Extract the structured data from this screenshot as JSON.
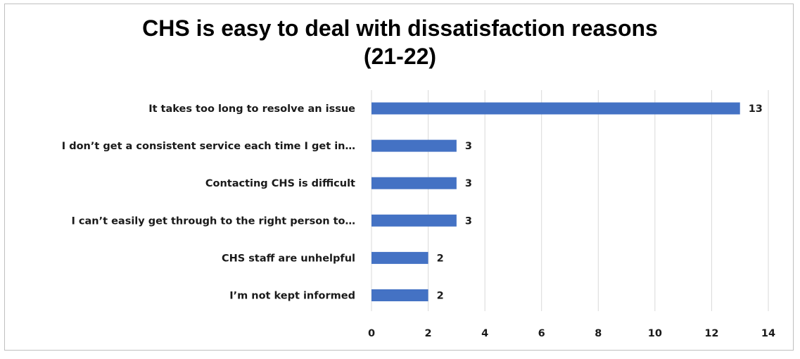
{
  "chart_data": {
    "type": "bar",
    "orientation": "horizontal",
    "title_lines": [
      "CHS is easy to deal with dissatisfaction reasons",
      "(21-22)"
    ],
    "categories": [
      "It takes too long to resolve an issue",
      "I don’t get a consistent service each time I get in…",
      "Contacting CHS is difficult",
      "I can’t easily get through to the right person to…",
      "CHS staff are unhelpful",
      "I’m not kept informed"
    ],
    "values": [
      13,
      3,
      3,
      3,
      2,
      2
    ],
    "xlim": [
      0,
      14
    ],
    "x_ticks": [
      0,
      2,
      4,
      6,
      8,
      10,
      12,
      14
    ],
    "grid": "vertical",
    "data_labels": true,
    "bar_color": "#4472c4",
    "grid_color": "#d9d9d9"
  }
}
